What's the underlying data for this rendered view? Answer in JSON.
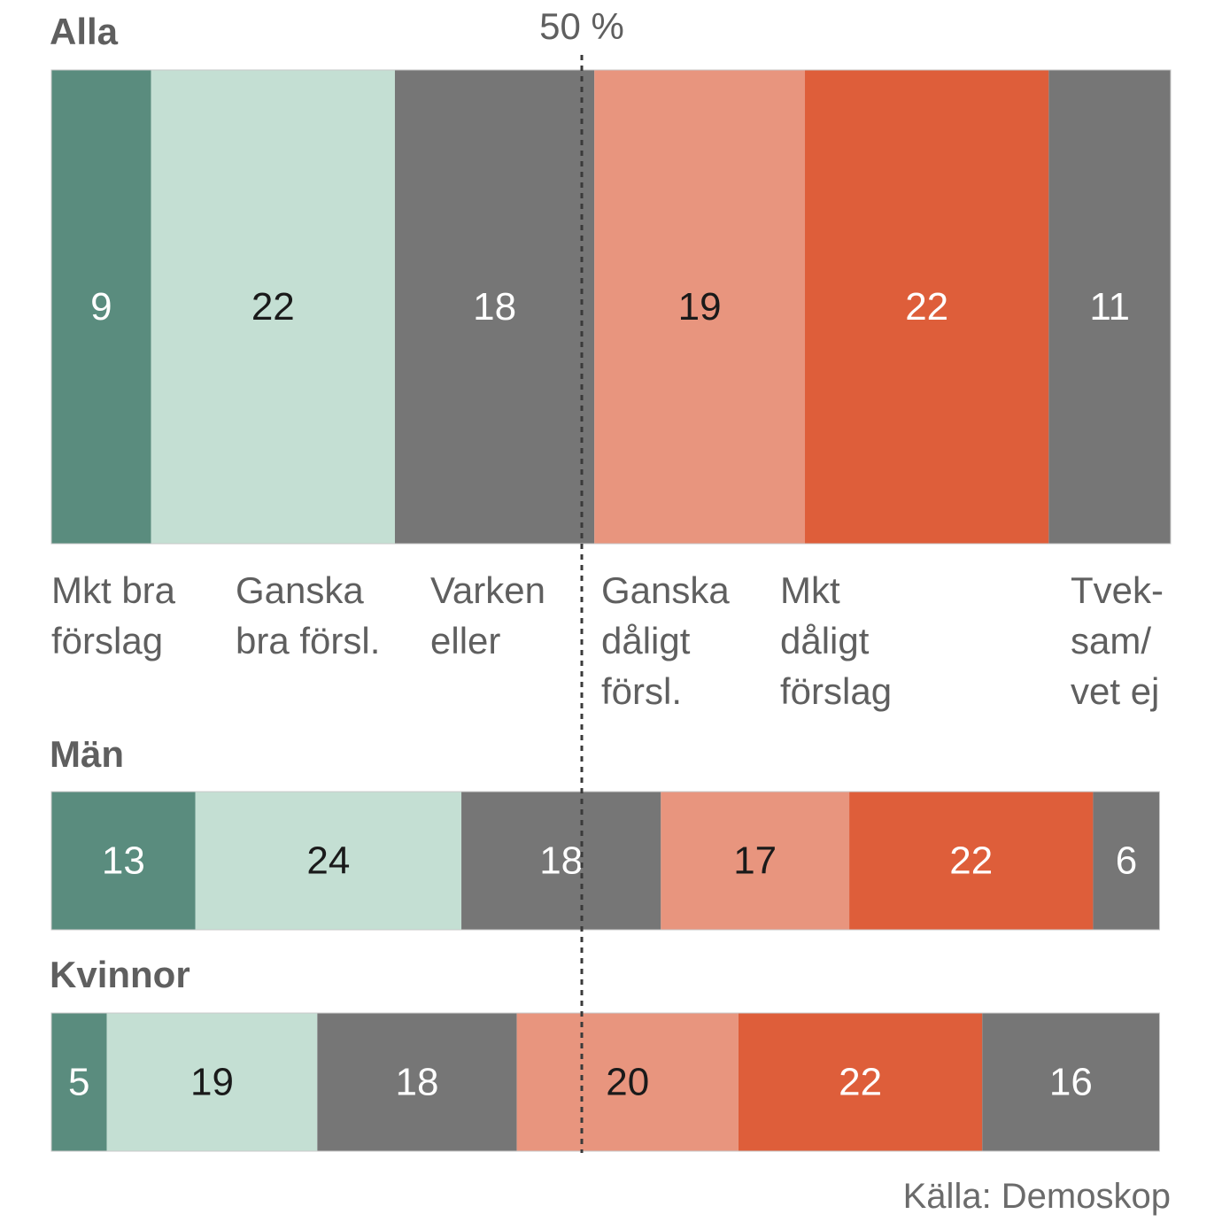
{
  "chart_data": {
    "type": "bar",
    "orientation": "horizontal",
    "stacked": true,
    "xlim": [
      0,
      101
    ],
    "reference_line": {
      "value": 50,
      "label": "50 %"
    },
    "source": "Källa: Demoskop",
    "categories": [
      {
        "label_lines": [
          "Mkt bra",
          "förslag"
        ],
        "color": "#5a8c7e",
        "text_color": "#ffffff"
      },
      {
        "label_lines": [
          "Ganska",
          "bra försl."
        ],
        "color": "#c4dfd3",
        "text_color": "#1a1a1a"
      },
      {
        "label_lines": [
          "Varken",
          "eller"
        ],
        "color": "#767676",
        "text_color": "#ffffff"
      },
      {
        "label_lines": [
          "Ganska",
          "dåligt",
          "försl."
        ],
        "color": "#e8957e",
        "text_color": "#1a1a1a"
      },
      {
        "label_lines": [
          "Mkt",
          "dåligt",
          "förslag"
        ],
        "color": "#de5e3a",
        "text_color": "#ffffff"
      },
      {
        "label_lines": [
          "Tvek-",
          "sam/",
          "vet ej"
        ],
        "color": "#767676",
        "text_color": "#ffffff"
      }
    ],
    "series": [
      {
        "name": "Alla",
        "values": [
          9,
          22,
          18,
          19,
          22,
          11
        ]
      },
      {
        "name": "Män",
        "values": [
          13,
          24,
          18,
          17,
          22,
          6
        ]
      },
      {
        "name": "Kvinnor",
        "values": [
          5,
          19,
          18,
          20,
          22,
          16
        ]
      }
    ]
  }
}
